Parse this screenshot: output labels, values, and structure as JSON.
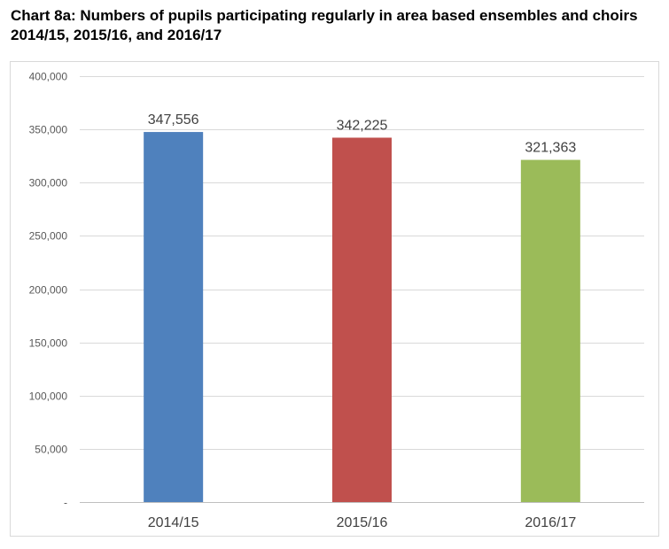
{
  "title": "Chart 8a: Numbers of pupils participating regularly in area based ensembles and choirs 2014/15, 2015/16, and 2016/17",
  "chart_data": {
    "type": "bar",
    "title": "Chart 8a: Numbers of pupils participating regularly in area based ensembles and choirs 2014/15, 2015/16, and 2016/17",
    "xlabel": "",
    "ylabel": "",
    "categories": [
      "2014/15",
      "2015/16",
      "2016/17"
    ],
    "values": [
      347556,
      342225,
      321363
    ],
    "data_labels": [
      "347,556",
      "342,225",
      "321,363"
    ],
    "colors": [
      "#4f81bd",
      "#c0504d",
      "#9bbb59"
    ],
    "ylim": [
      0,
      400000
    ],
    "yticks": [
      0,
      50000,
      100000,
      150000,
      200000,
      250000,
      300000,
      350000,
      400000
    ],
    "ytick_labels": [
      "-",
      "50,000",
      "100,000",
      "150,000",
      "200,000",
      "250,000",
      "300,000",
      "350,000",
      "400,000"
    ],
    "grid": true,
    "legend": "none"
  }
}
